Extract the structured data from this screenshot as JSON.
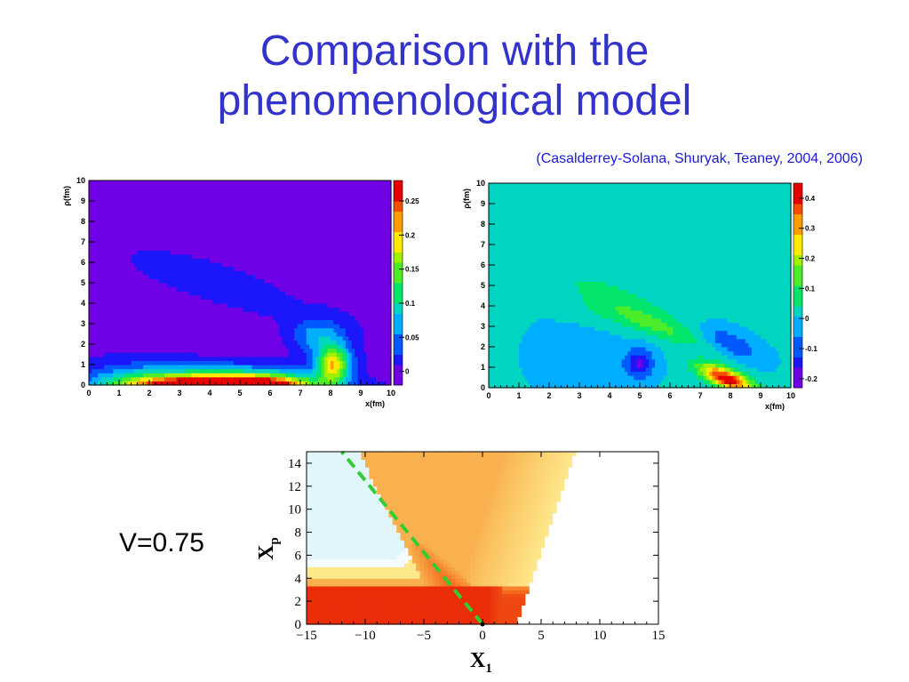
{
  "slide": {
    "title_line1": "Comparison with the",
    "title_line2": "phenomenological model",
    "citation": "(Casalderrey-Solana, Shuryak, Teaney, 2004, 2006)",
    "velocity_label": "V=0.75"
  },
  "colors": {
    "title": "#3333cc",
    "citation": "#1a1ad6",
    "dashed_line": "#33cc33"
  },
  "chart_data": [
    {
      "type": "heatmap",
      "xlabel": "x(fm)",
      "ylabel": "ρ(fm)",
      "xlim": [
        0,
        10
      ],
      "ylim": [
        0,
        10
      ],
      "xticks": [
        "0",
        "1",
        "2",
        "3",
        "4",
        "5",
        "6",
        "7",
        "8",
        "9",
        "10"
      ],
      "yticks": [
        "0",
        "1",
        "2",
        "3",
        "4",
        "5",
        "6",
        "7",
        "8",
        "9",
        "10"
      ],
      "colorbar_ticks": [
        "0",
        "0.05",
        "0.1",
        "0.15",
        "0.2",
        "0.25"
      ],
      "colorbar_range": [
        -0.02,
        0.28
      ],
      "background_value": 0
    },
    {
      "type": "heatmap",
      "xlabel": "x(fm)",
      "ylabel": "ρ(fm)",
      "xlim": [
        0,
        10
      ],
      "ylim": [
        0,
        10
      ],
      "xticks": [
        "0",
        "1",
        "2",
        "3",
        "4",
        "5",
        "6",
        "7",
        "8",
        "9",
        "10"
      ],
      "yticks": [
        "0",
        "1",
        "2",
        "3",
        "4",
        "5",
        "6",
        "7",
        "8",
        "9",
        "10"
      ],
      "colorbar_ticks": [
        "-0.2",
        "-0.1",
        "0",
        "0.1",
        "0.2",
        "0.3",
        "0.4"
      ],
      "colorbar_range": [
        -0.23,
        0.45
      ],
      "background_value": 0
    },
    {
      "type": "heatmap",
      "xlabel": "X",
      "xlabel_sub": "1",
      "ylabel": "X",
      "ylabel_sub": "p",
      "xlim": [
        -15,
        15
      ],
      "ylim": [
        0,
        15
      ],
      "xticks": [
        "-15",
        "-10",
        "-5",
        "0",
        "5",
        "10",
        "15"
      ],
      "yticks": [
        "0",
        "2",
        "4",
        "6",
        "8",
        "10",
        "12",
        "14"
      ],
      "dashed_line": {
        "from": [
          0,
          0
        ],
        "to": [
          -12,
          15
        ]
      }
    }
  ]
}
